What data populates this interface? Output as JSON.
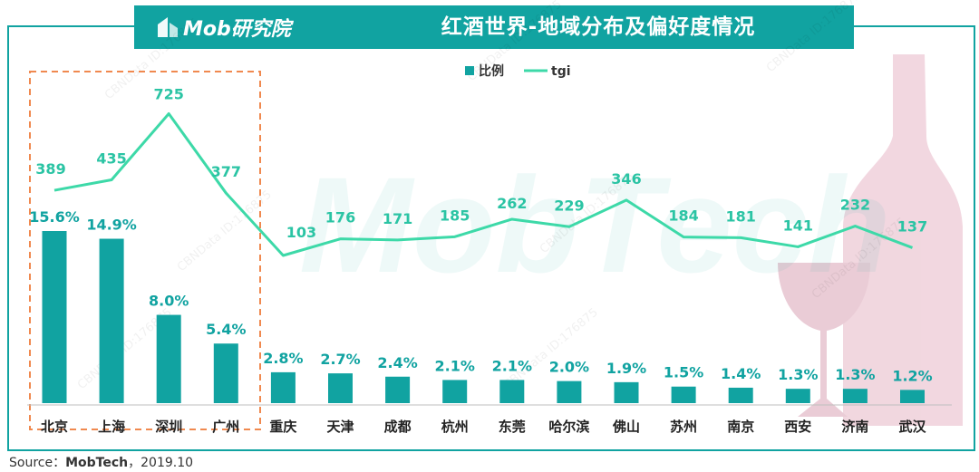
{
  "header": {
    "logo_text": "Mob研究院",
    "title": "红酒世界-地域分布及偏好度情况"
  },
  "watermark": {
    "big_text": "MobTech",
    "small_text": "CBNData ID:176875"
  },
  "source": {
    "prefix": "Source：",
    "org": "MobTech",
    "date": "，2019.10"
  },
  "colors": {
    "teal": "#11a3a1",
    "line": "#3dd9a8",
    "label": "#2bc4a4",
    "dashed": "#f0894f"
  },
  "chart_data": {
    "type": "bar",
    "categories": [
      "北京",
      "上海",
      "深圳",
      "广州",
      "重庆",
      "天津",
      "成都",
      "杭州",
      "东莞",
      "哈尔滨",
      "佛山",
      "苏州",
      "南京",
      "西安",
      "济南",
      "武汉"
    ],
    "series": [
      {
        "name": "比例",
        "type": "bar",
        "unit": "%",
        "values": [
          15.6,
          14.9,
          8.0,
          5.4,
          2.8,
          2.7,
          2.4,
          2.1,
          2.1,
          2.0,
          1.9,
          1.5,
          1.4,
          1.3,
          1.3,
          1.2
        ],
        "labels": [
          "15.6%",
          "14.9%",
          "8.0%",
          "5.4%",
          "2.8%",
          "2.7%",
          "2.4%",
          "2.1%",
          "2.1%",
          "2.0%",
          "1.9%",
          "1.5%",
          "1.4%",
          "1.3%",
          "1.3%",
          "1.2%"
        ]
      },
      {
        "name": "tgi",
        "type": "line",
        "values": [
          389,
          435,
          725,
          377,
          103,
          176,
          171,
          185,
          262,
          229,
          346,
          184,
          181,
          141,
          232,
          137
        ]
      }
    ],
    "legend": [
      "比例",
      "tgi"
    ],
    "highlight": [
      "北京",
      "上海",
      "深圳",
      "广州"
    ]
  }
}
